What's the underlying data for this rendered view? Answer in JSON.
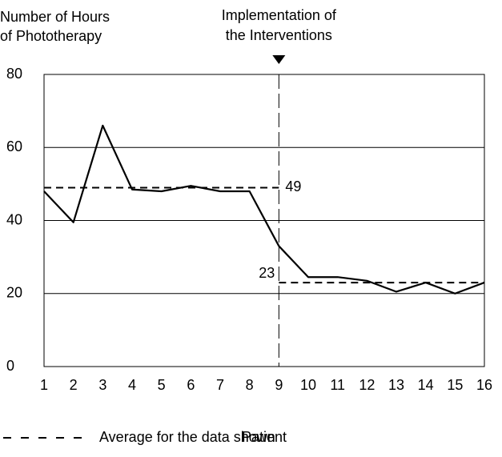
{
  "chart_data": {
    "type": "line",
    "y_label": [
      "Number of Hours",
      "of Phototherapy"
    ],
    "x_label": "Patient",
    "x": [
      1,
      2,
      3,
      4,
      5,
      6,
      7,
      8,
      9,
      10,
      11,
      12,
      13,
      14,
      15,
      16
    ],
    "series": [
      {
        "name": "Number of Hours of Phototherapy",
        "color": "#000000",
        "values": [
          48,
          39.5,
          66,
          48.5,
          48,
          49.5,
          48,
          48,
          33,
          24.5,
          24.5,
          23.5,
          20.5,
          23,
          20,
          23
        ]
      }
    ],
    "averages": [
      {
        "from": 1,
        "to": 9,
        "value": 49
      },
      {
        "from": 9,
        "to": 16,
        "value": 23
      }
    ],
    "annotation": {
      "text": [
        "Implementation of",
        "the Interventions"
      ],
      "x": 9
    },
    "legend": "Average for the data shown",
    "xlim": [
      1,
      16
    ],
    "xticks": [
      1,
      2,
      3,
      4,
      5,
      6,
      7,
      8,
      9,
      10,
      11,
      12,
      13,
      14,
      15,
      16
    ],
    "ylim": [
      0,
      80
    ],
    "yticks": [
      0,
      20,
      40,
      60,
      80
    ],
    "grid": true
  }
}
